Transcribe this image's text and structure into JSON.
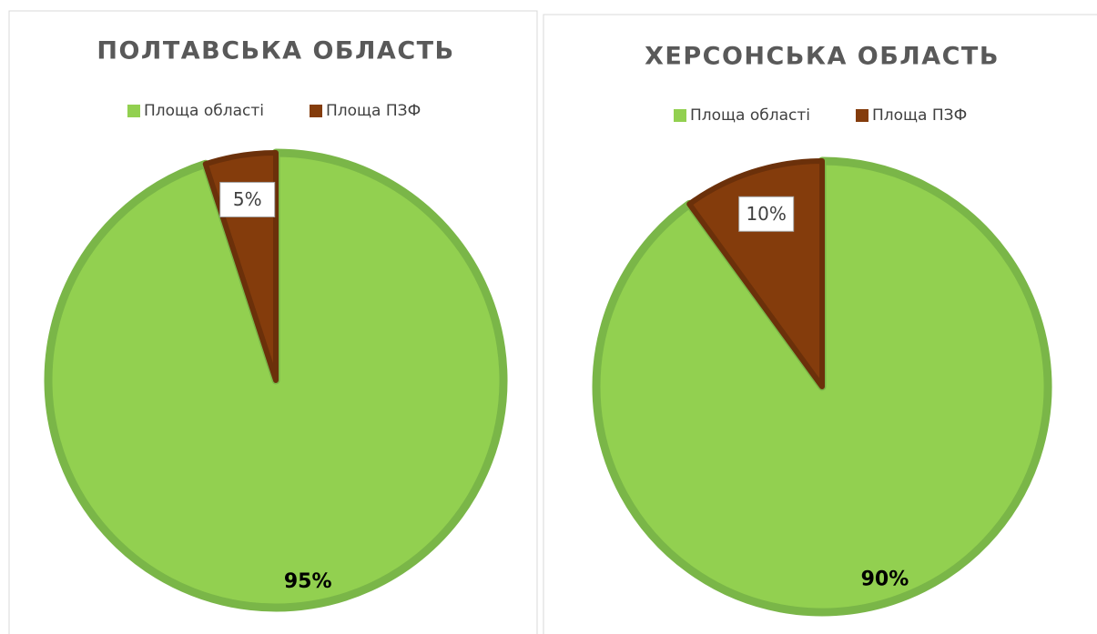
{
  "chart_data": [
    {
      "type": "pie",
      "title": "ПОЛТАВСЬКА ОБЛАСТЬ",
      "categories": [
        "Площа області",
        "Площа ПЗФ"
      ],
      "values": [
        95,
        5
      ],
      "value_labels": [
        "95%",
        "5%"
      ],
      "colors": [
        "#92d050",
        "#843c0c"
      ],
      "legend": "top"
    },
    {
      "type": "pie",
      "title": "ХЕРСОНСЬКА ОБЛАСТЬ",
      "categories": [
        "Площа області",
        "Площа ПЗФ"
      ],
      "values": [
        90,
        10
      ],
      "value_labels": [
        "90%",
        "10%"
      ],
      "colors": [
        "#92d050",
        "#843c0c"
      ],
      "legend": "top"
    }
  ]
}
